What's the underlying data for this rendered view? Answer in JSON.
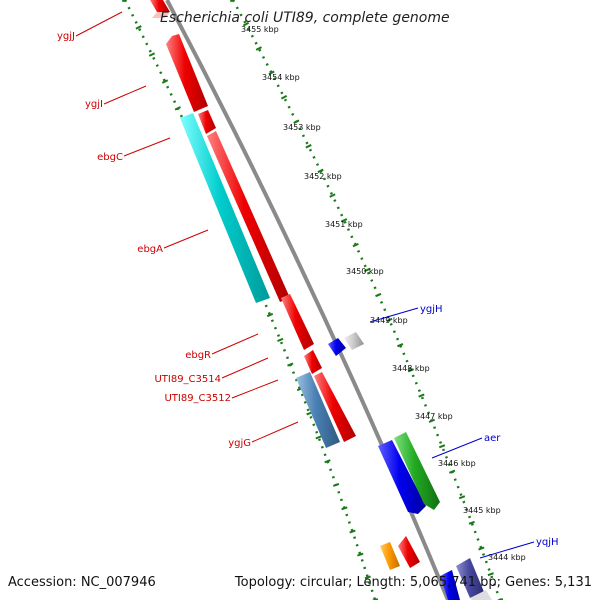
{
  "title": "Escherichia coli UTI89, complete genome",
  "footer": {
    "accession": "Accession: NC_007946",
    "summary": "Topology: circular; Length: 5,065,741 bp; Genes: 5,131"
  },
  "scale_labels": [
    "3455 kbp",
    "3454 kbp",
    "3453 kbp",
    "3452 kbp",
    "3451 kbp",
    "3450 kbp",
    "3449 kbp",
    "3448 kbp",
    "3447 kbp",
    "3446 kbp",
    "3445 kbp",
    "3444 kbp"
  ],
  "gene_labels_left": [
    "ygjJ",
    "ygjI",
    "ebgC",
    "ebgA",
    "ebgR",
    "UTI89_C3514",
    "UTI89_C3512",
    "ygjG"
  ],
  "gene_labels_right": [
    "ygjH",
    "aer",
    "yqjH"
  ],
  "colors": {
    "backbone": "#808080",
    "tick": "#1a7a1a",
    "cds_red": "#ee0000",
    "cds_cyan": "#00cccc",
    "cds_steel": "#4a80b4",
    "cds_blue": "#0000ee",
    "cds_green": "#22aa22",
    "cds_grey": "#c8c8c8",
    "cds_orange": "#ff9900",
    "cds_purple": "#4a4aa0",
    "label_red": "#cc0000",
    "label_blue": "#0000cc"
  }
}
